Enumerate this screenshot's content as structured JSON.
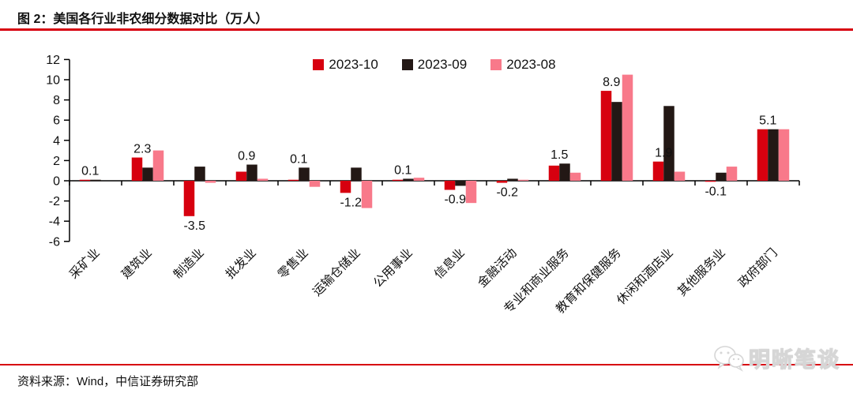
{
  "figure": {
    "title": "图 2：美国各行业非农细分数据对比（万人）"
  },
  "chart_data": {
    "type": "bar",
    "title": "美国各行业非农细分数据对比",
    "unit": "万人",
    "categories": [
      "采矿业",
      "建筑业",
      "制造业",
      "批发业",
      "零售业",
      "运输仓储业",
      "公用事业",
      "信息业",
      "金融活动",
      "专业和商业服务",
      "教育和保健服务",
      "休闲和酒店业",
      "其他服务业",
      "政府部门"
    ],
    "series": [
      {
        "name": "2023-10",
        "color": "#d7000f",
        "values": [
          0.1,
          2.3,
          -3.5,
          0.9,
          0.1,
          -1.2,
          0.1,
          -0.9,
          -0.2,
          1.5,
          8.9,
          1.9,
          -0.1,
          5.1
        ]
      },
      {
        "name": "2023-09",
        "color": "#231815",
        "values": [
          0.1,
          1.3,
          1.4,
          1.6,
          1.3,
          1.3,
          0.2,
          -0.5,
          0.2,
          1.7,
          7.8,
          7.4,
          0.8,
          5.1
        ]
      },
      {
        "name": "2023-08",
        "color": "#f8798a",
        "values": [
          0,
          3.0,
          -0.2,
          0.2,
          -0.6,
          -2.7,
          0.3,
          -2.2,
          0.1,
          0.8,
          10.5,
          0.9,
          1.4,
          5.1
        ]
      }
    ],
    "value_labels": [
      "0.1",
      "2.3",
      "-3.5",
      "0.9",
      "0.1",
      "-1.2",
      "0.1",
      "-0.9",
      "-0.2",
      "1.5",
      "8.9",
      "1.9",
      "-0.1",
      "5.1"
    ],
    "ylim": [
      -6,
      12
    ],
    "yticks": [
      -6,
      -4,
      -2,
      0,
      2,
      4,
      6,
      8,
      10,
      12
    ],
    "legend_position": "top-center",
    "grid": false
  },
  "footer": {
    "source": "资料来源：Wind，中信证券研究部"
  },
  "watermark": {
    "text": "明晰笔谈"
  },
  "colors": {
    "accent_red": "#d7000f",
    "series_black": "#231815",
    "series_pink": "#f8798a",
    "axis": "#000000"
  }
}
